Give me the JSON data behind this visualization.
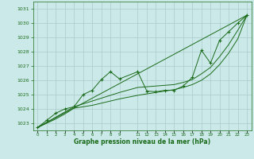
{
  "xlabel": "Graphe pression niveau de la mer (hPa)",
  "bg_color": "#cce9e9",
  "grid_color": "#aacccc",
  "line_color": "#1a6b1a",
  "ylim": [
    1022.5,
    1031.5
  ],
  "xlim": [
    -0.5,
    23.5
  ],
  "yticks": [
    1023,
    1024,
    1025,
    1026,
    1027,
    1028,
    1029,
    1030,
    1031
  ],
  "xticks": [
    0,
    1,
    2,
    3,
    4,
    5,
    6,
    7,
    8,
    9,
    11,
    12,
    13,
    14,
    15,
    16,
    17,
    18,
    19,
    20,
    21,
    22,
    23
  ],
  "series_main": {
    "x": [
      0,
      1,
      2,
      3,
      4,
      5,
      6,
      7,
      8,
      9,
      11,
      12,
      13,
      14,
      15,
      16,
      17,
      18,
      19,
      20,
      21,
      22,
      23
    ],
    "y": [
      1022.7,
      1023.2,
      1023.7,
      1024.0,
      1024.15,
      1025.0,
      1025.3,
      1026.05,
      1026.6,
      1026.1,
      1026.6,
      1025.25,
      1025.2,
      1025.3,
      1025.3,
      1025.6,
      1026.2,
      1028.1,
      1027.2,
      1028.8,
      1029.4,
      1030.0,
      1030.55
    ]
  },
  "series_linear": {
    "x": [
      0,
      23
    ],
    "y": [
      1022.7,
      1030.55
    ]
  },
  "series_lower": {
    "x": [
      0,
      1,
      2,
      3,
      4,
      5,
      6,
      7,
      8,
      9,
      11,
      12,
      13,
      14,
      15,
      16,
      17,
      18,
      19,
      20,
      21,
      22,
      23
    ],
    "y": [
      1022.7,
      1023.0,
      1023.3,
      1023.65,
      1024.05,
      1024.15,
      1024.25,
      1024.4,
      1024.55,
      1024.7,
      1024.95,
      1025.05,
      1025.15,
      1025.25,
      1025.35,
      1025.5,
      1025.7,
      1026.0,
      1026.45,
      1027.1,
      1027.9,
      1028.9,
      1030.55
    ]
  },
  "series_upper": {
    "x": [
      0,
      4,
      9,
      11,
      12,
      13,
      14,
      15,
      16,
      17,
      18,
      19,
      20,
      21,
      22,
      23
    ],
    "y": [
      1022.7,
      1024.15,
      1025.15,
      1025.5,
      1025.55,
      1025.6,
      1025.65,
      1025.7,
      1025.85,
      1026.05,
      1026.45,
      1026.9,
      1027.65,
      1028.5,
      1029.5,
      1030.55
    ]
  }
}
